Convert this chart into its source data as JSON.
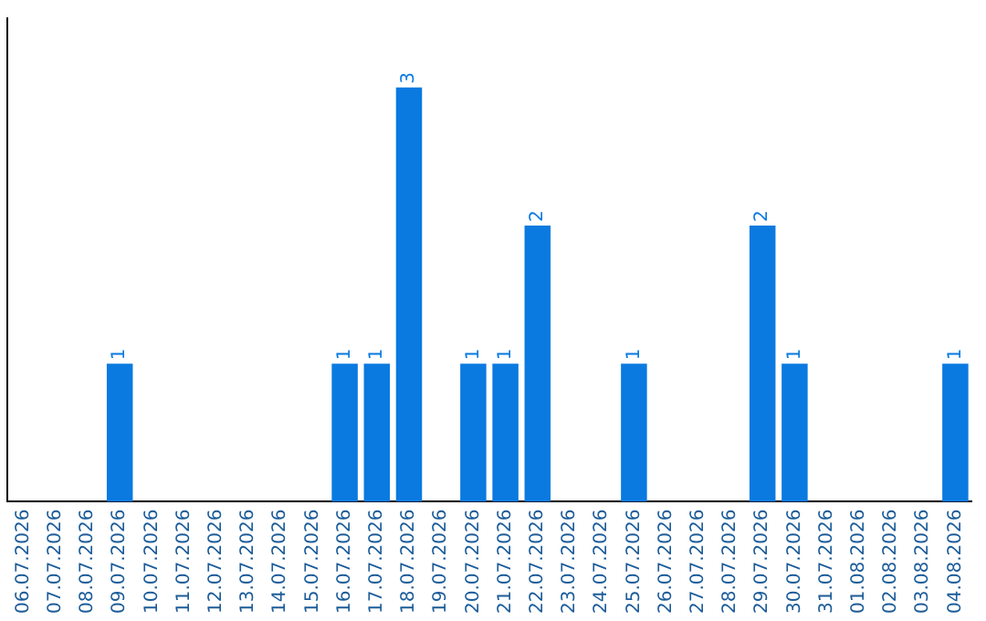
{
  "chart_data": {
    "type": "bar",
    "categories": [
      "06.07.2026",
      "07.07.2026",
      "08.07.2026",
      "09.07.2026",
      "10.07.2026",
      "11.07.2026",
      "12.07.2026",
      "13.07.2026",
      "14.07.2026",
      "15.07.2026",
      "16.07.2026",
      "17.07.2026",
      "18.07.2026",
      "19.07.2026",
      "20.07.2026",
      "21.07.2026",
      "22.07.2026",
      "23.07.2026",
      "24.07.2026",
      "25.07.2026",
      "26.07.2026",
      "27.07.2026",
      "28.07.2026",
      "29.07.2026",
      "30.07.2026",
      "31.07.2026",
      "01.08.2026",
      "02.08.2026",
      "03.08.2026",
      "04.08.2026"
    ],
    "values": [
      0,
      0,
      0,
      1,
      0,
      0,
      0,
      0,
      0,
      0,
      1,
      1,
      3,
      0,
      1,
      1,
      2,
      0,
      0,
      1,
      0,
      0,
      0,
      2,
      1,
      0,
      0,
      0,
      0,
      1
    ],
    "value_labels": [
      null,
      null,
      null,
      "1",
      null,
      null,
      null,
      null,
      null,
      null,
      "1",
      "1",
      "3",
      null,
      "1",
      "1",
      "2",
      null,
      null,
      "1",
      null,
      null,
      null,
      "2",
      "1",
      null,
      null,
      null,
      null,
      "1"
    ],
    "color": "#0a7ae0",
    "grid": false,
    "legend": false
  }
}
